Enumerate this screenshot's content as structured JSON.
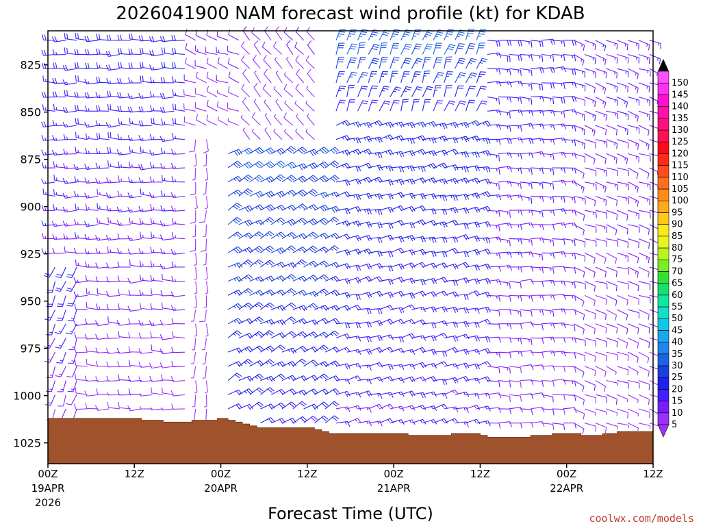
{
  "chart_data": {
    "type": "wind-barb-profile",
    "title": "2026041900 NAM forecast wind profile (kt) for KDAB",
    "xlabel": "Forecast Time (UTC)",
    "ylabel": "",
    "y_ticks": [
      825,
      850,
      875,
      900,
      925,
      950,
      975,
      1000,
      1025
    ],
    "y_range_hpa": [
      807,
      1036
    ],
    "x_range_hours": [
      0,
      84
    ],
    "x_ticks": [
      {
        "hour": 0,
        "label": "00Z",
        "date": "19APR",
        "year": "2026"
      },
      {
        "hour": 12,
        "label": "12Z",
        "date": "",
        "year": ""
      },
      {
        "hour": 24,
        "label": "00Z",
        "date": "20APR",
        "year": ""
      },
      {
        "hour": 36,
        "label": "12Z",
        "date": "",
        "year": ""
      },
      {
        "hour": 48,
        "label": "00Z",
        "date": "21APR",
        "year": ""
      },
      {
        "hour": 60,
        "label": "12Z",
        "date": "",
        "year": ""
      },
      {
        "hour": 72,
        "label": "00Z",
        "date": "22APR",
        "year": ""
      },
      {
        "hour": 84,
        "label": "12Z",
        "date": "",
        "year": ""
      }
    ],
    "colorbar": {
      "levels": [
        5,
        10,
        15,
        20,
        25,
        30,
        35,
        40,
        45,
        50,
        55,
        60,
        65,
        70,
        75,
        80,
        85,
        90,
        95,
        100,
        105,
        110,
        115,
        120,
        125,
        130,
        135,
        140,
        145,
        150
      ],
      "colors": [
        "#9b30ff",
        "#7a1cff",
        "#4020ff",
        "#2020ee",
        "#1a3fe0",
        "#1e62e8",
        "#1f86ee",
        "#17a8f0",
        "#11c8e8",
        "#12e0c8",
        "#10e8a0",
        "#15e070",
        "#35e035",
        "#7aee20",
        "#b8f520",
        "#e8f520",
        "#ffe81a",
        "#ffc81a",
        "#ffaa1a",
        "#ff8c1a",
        "#ff6e1a",
        "#ff4d1a",
        "#ff2a1a",
        "#ff0a1a",
        "#ff1050",
        "#ff1080",
        "#ff10a8",
        "#ff10d0",
        "#ff30ee",
        "#ff50ff"
      ]
    },
    "terrain": {
      "color": "#a0522d",
      "surface_pressure_hpa": [
        {
          "hour": 0,
          "p": 1012
        },
        {
          "hour": 10,
          "p": 1012
        },
        {
          "hour": 13,
          "p": 1013
        },
        {
          "hour": 16,
          "p": 1014
        },
        {
          "hour": 20,
          "p": 1013
        },
        {
          "hour": 23.5,
          "p": 1012
        },
        {
          "hour": 25,
          "p": 1013
        },
        {
          "hour": 26,
          "p": 1014
        },
        {
          "hour": 27,
          "p": 1015
        },
        {
          "hour": 28,
          "p": 1016
        },
        {
          "hour": 29,
          "p": 1017
        },
        {
          "hour": 36,
          "p": 1017
        },
        {
          "hour": 37,
          "p": 1018
        },
        {
          "hour": 38,
          "p": 1019
        },
        {
          "hour": 39,
          "p": 1020
        },
        {
          "hour": 48,
          "p": 1020
        },
        {
          "hour": 50,
          "p": 1021
        },
        {
          "hour": 56,
          "p": 1020
        },
        {
          "hour": 60,
          "p": 1021
        },
        {
          "hour": 61,
          "p": 1022
        },
        {
          "hour": 66,
          "p": 1022
        },
        {
          "hour": 67,
          "p": 1021
        },
        {
          "hour": 70,
          "p": 1020
        },
        {
          "hour": 73,
          "p": 1020
        },
        {
          "hour": 74,
          "p": 1021
        },
        {
          "hour": 77,
          "p": 1020
        },
        {
          "hour": 79,
          "p": 1019
        },
        {
          "hour": 82,
          "p": 1019
        },
        {
          "hour": 84,
          "p": 1020
        }
      ]
    },
    "wind_regimes": [
      {
        "hours": [
          0,
          20
        ],
        "p_top": 807,
        "p_bottom": 1012,
        "dir_deg": 270,
        "speed_kt": [
          8,
          20
        ],
        "note": "westerly, strongest near 800-850 hPa"
      },
      {
        "hours": [
          0,
          4
        ],
        "p_top": 930,
        "p_bottom": 1012,
        "dir_deg": 200,
        "speed_kt": [
          10,
          22
        ]
      },
      {
        "hours": [
          20,
          23
        ],
        "p_top": 860,
        "p_bottom": 1012,
        "dir_deg": 180,
        "speed_kt": [
          5,
          8
        ]
      },
      {
        "hours": [
          20,
          28
        ],
        "p_top": 807,
        "p_bottom": 860,
        "dir_deg": 290,
        "speed_kt": [
          8,
          12
        ]
      },
      {
        "hours": [
          28,
          38
        ],
        "p_top": 807,
        "p_bottom": 870,
        "dir_deg": 320,
        "speed_kt": [
          5,
          10
        ]
      },
      {
        "hours": [
          24,
          40
        ],
        "p_top": 870,
        "p_bottom": 1017,
        "dir_deg": 60,
        "speed_kt": [
          20,
          30
        ]
      },
      {
        "hours": [
          40,
          60
        ],
        "p_top": 850,
        "p_bottom": 1020,
        "dir_deg": 75,
        "speed_kt": [
          15,
          25
        ]
      },
      {
        "hours": [
          40,
          60
        ],
        "p_top": 807,
        "p_bottom": 850,
        "dir_deg": 20,
        "speed_kt": [
          20,
          35
        ]
      },
      {
        "hours": [
          60,
          72
        ],
        "p_top": 807,
        "p_bottom": 1020,
        "dir_deg": 90,
        "speed_kt": [
          10,
          18
        ]
      },
      {
        "hours": [
          72,
          84
        ],
        "p_top": 807,
        "p_bottom": 1020,
        "dir_deg": 110,
        "speed_kt": [
          8,
          15
        ]
      }
    ]
  },
  "credit": "coolwx.com/models"
}
